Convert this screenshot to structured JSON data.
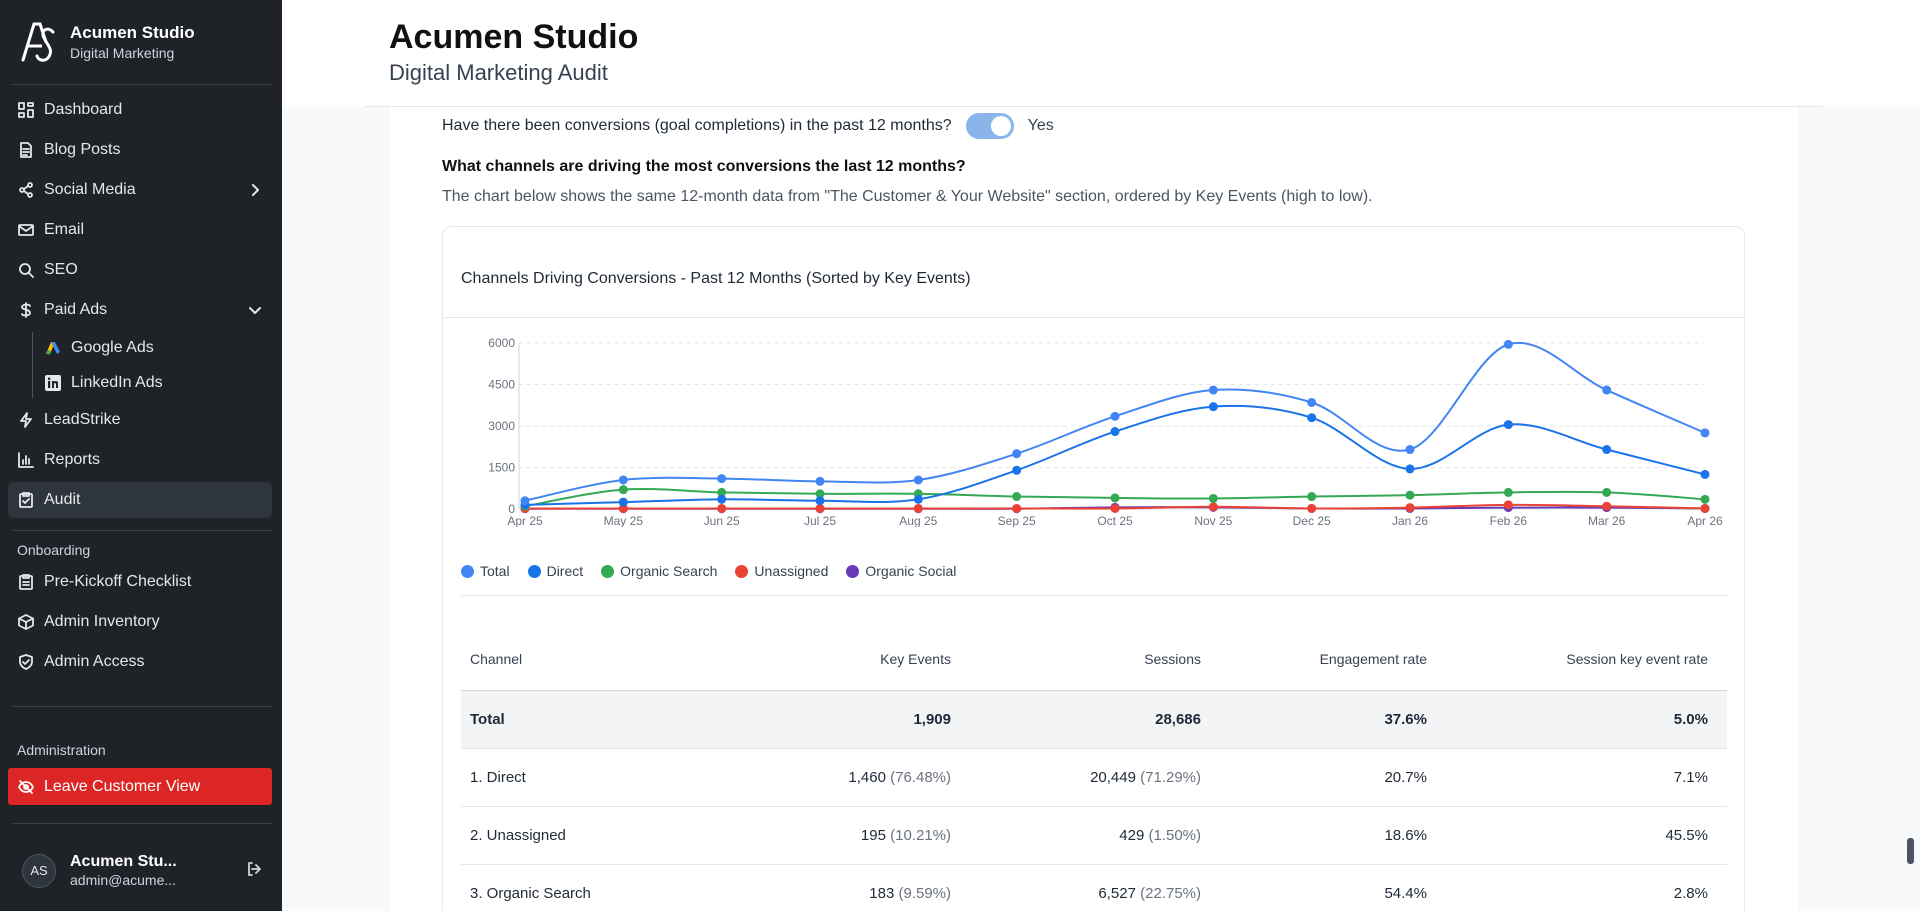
{
  "brand": {
    "name": "Acumen Studio",
    "sub": "Digital Marketing"
  },
  "nav": {
    "dashboard": "Dashboard",
    "blog": "Blog Posts",
    "social": "Social Media",
    "email": "Email",
    "seo": "SEO",
    "paid_ads": "Paid Ads",
    "google_ads": "Google Ads",
    "linkedin_ads": "LinkedIn Ads",
    "leadstrike": "LeadStrike",
    "reports": "Reports",
    "audit": "Audit"
  },
  "onboarding": {
    "label": "Onboarding",
    "checklist": "Pre-Kickoff Checklist",
    "inventory": "Admin Inventory",
    "access": "Admin Access"
  },
  "administration": {
    "label": "Administration",
    "leave": "Leave Customer View"
  },
  "user": {
    "initials": "AS",
    "name": "Acumen Stu...",
    "email": "admin@acume..."
  },
  "header": {
    "title": "Acumen Studio",
    "subtitle": "Digital Marketing Audit"
  },
  "content": {
    "question1": "Have there been conversions (goal completions) in the past 12 months?",
    "toggle_label": "Yes",
    "question2": "What channels are driving the most conversions the last 12 months?",
    "description": "The chart below shows the same 12-month data from \"The Customer & Your Website\" section, ordered by Key Events (high to low)."
  },
  "chart_data": {
    "type": "line",
    "title": "Channels Driving Conversions - Past 12 Months (Sorted by Key Events)",
    "categories": [
      "Apr 25",
      "May 25",
      "Jun 25",
      "Jul 25",
      "Aug 25",
      "Sep 25",
      "Oct 25",
      "Nov 25",
      "Dec 25",
      "Jan 26",
      "Feb 26",
      "Mar 26",
      "Apr 26"
    ],
    "y_ticks": [
      "0",
      "1500",
      "3000",
      "4500",
      "6000"
    ],
    "ylim": [
      0,
      6000
    ],
    "legend_position": "bottom-left",
    "series": [
      {
        "name": "Total",
        "color": "#4285f4",
        "values": [
          300,
          1050,
          1100,
          1000,
          1050,
          2000,
          3350,
          4300,
          3850,
          2150,
          5950,
          4300,
          2750
        ]
      },
      {
        "name": "Direct",
        "color": "#1a73e8",
        "values": [
          150,
          250,
          350,
          300,
          350,
          1400,
          2800,
          3700,
          3300,
          1450,
          3050,
          2150,
          1250
        ]
      },
      {
        "name": "Organic Search",
        "color": "#34a853",
        "values": [
          100,
          700,
          600,
          550,
          550,
          450,
          400,
          380,
          450,
          500,
          600,
          600,
          350
        ]
      },
      {
        "name": "Unassigned",
        "color": "#ea4335",
        "values": [
          20,
          20,
          20,
          20,
          20,
          20,
          20,
          80,
          20,
          50,
          150,
          100,
          20
        ]
      },
      {
        "name": "Organic Social",
        "color": "#673ab7",
        "values": [
          10,
          10,
          10,
          10,
          10,
          10,
          60,
          60,
          20,
          20,
          50,
          50,
          20
        ]
      }
    ]
  },
  "table": {
    "headers": [
      "Channel",
      "Key Events",
      "Sessions",
      "Engagement rate",
      "Session key event rate"
    ],
    "total": {
      "channel": "Total",
      "key_events": "1,909",
      "sessions": "28,686",
      "engagement": "37.6%",
      "rate": "5.0%"
    },
    "rows": [
      {
        "channel": "1. Direct",
        "key_events": "1,460",
        "key_pct": "(76.48%)",
        "sessions": "20,449",
        "sess_pct": "(71.29%)",
        "engagement": "20.7%",
        "rate": "7.1%"
      },
      {
        "channel": "2. Unassigned",
        "key_events": "195",
        "key_pct": "(10.21%)",
        "sessions": "429",
        "sess_pct": "(1.50%)",
        "engagement": "18.6%",
        "rate": "45.5%"
      },
      {
        "channel": "3. Organic Search",
        "key_events": "183",
        "key_pct": "(9.59%)",
        "sessions": "6,527",
        "sess_pct": "(22.75%)",
        "engagement": "54.4%",
        "rate": "2.8%"
      }
    ]
  }
}
